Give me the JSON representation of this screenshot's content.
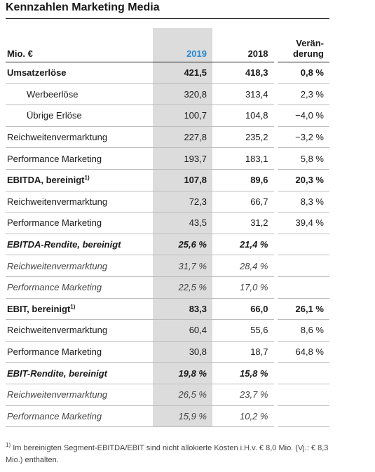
{
  "header": {
    "title": "Kennzahlen Marketing Media"
  },
  "table": {
    "columns": [
      "Mio. €",
      "2019",
      "2018",
      [
        "Verän-",
        "derung"
      ]
    ],
    "rows": [
      [
        "Umsatzerlöse",
        "421,5",
        "418,3",
        "0,8 %"
      ],
      [
        "Werbeerlöse",
        "320,8",
        "313,4",
        "2,3 %"
      ],
      [
        "Übrige Erlöse",
        "100,7",
        "104,8",
        "−4,0 %"
      ],
      [
        "Reichweitenvermarktung",
        "227,8",
        "235,2",
        "−3,2 %"
      ],
      [
        "Performance Marketing",
        "193,7",
        "183,1",
        "5,8 %"
      ],
      [
        [
          "EBITDA, bereinigt",
          "1)"
        ],
        "107,8",
        "89,6",
        "20,3 %"
      ],
      [
        "Reichweitenvermarktung",
        "72,3",
        "66,7",
        "8,3 %"
      ],
      [
        "Performance Marketing",
        "43,5",
        "31,2",
        "39,4 %"
      ],
      [
        "EBITDA-Rendite, bereinigt",
        "25,6 %",
        "21,4 %"
      ],
      [
        "Reichweitenvermarktung",
        "31,7 %",
        "28,4 %"
      ],
      [
        "Performance Marketing",
        "22,5 %",
        "17,0 %"
      ],
      [
        [
          "EBIT, bereinigt",
          "1)"
        ],
        "83,3",
        "66,0",
        "26,1 %"
      ],
      [
        "Reichweitenvermarktung",
        "60,4",
        "55,6",
        "8,6 %"
      ],
      [
        "Performance Marketing",
        "30,8",
        "18,7",
        "64,8 %"
      ],
      [
        "EBIT-Rendite, bereinigt",
        "19,8 %",
        "15,8 %"
      ],
      [
        "Reichweitenvermarktung",
        "26,5 %",
        "23,7 %"
      ],
      [
        "Performance Marketing",
        "15,9 %",
        "10,2 %"
      ]
    ]
  },
  "footnote": {
    "marker": "1)",
    "text": "Im bereinigten Segment-EBITDA/EBIT sind nicht allokierte Kosten i.H.v. € 8,0 Mio. (Vj.: € 8,3 Mio.) enthalten."
  }
}
